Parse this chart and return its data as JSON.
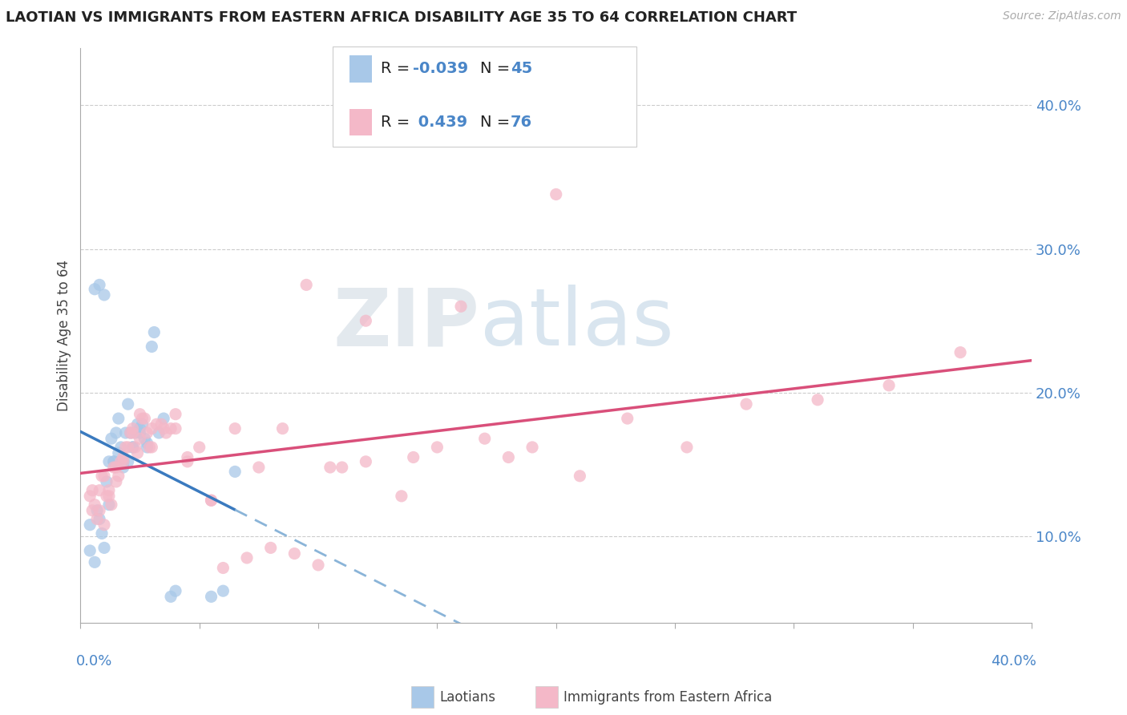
{
  "title": "LAOTIAN VS IMMIGRANTS FROM EASTERN AFRICA DISABILITY AGE 35 TO 64 CORRELATION CHART",
  "source_text": "Source: ZipAtlas.com",
  "ylabel": "Disability Age 35 to 64",
  "xlim": [
    0.0,
    0.4
  ],
  "ylim": [
    0.04,
    0.44
  ],
  "color_blue": "#a8c8e8",
  "color_pink": "#f4b8c8",
  "color_blue_line": "#3a7abf",
  "color_pink_line": "#d94f7a",
  "color_blue_line_dash": "#8ab4d8",
  "watermark_zip": "#c8d4e0",
  "watermark_atlas": "#a8c8e0",
  "legend_r1_val": "-0.039",
  "legend_n1": "45",
  "legend_r2_val": "0.439",
  "legend_n2": "76",
  "blue_scatter_x": [
    0.004,
    0.006,
    0.007,
    0.008,
    0.009,
    0.01,
    0.011,
    0.012,
    0.013,
    0.014,
    0.015,
    0.016,
    0.017,
    0.018,
    0.019,
    0.02,
    0.021,
    0.022,
    0.023,
    0.024,
    0.025,
    0.026,
    0.027,
    0.028,
    0.03,
    0.031,
    0.033,
    0.035,
    0.038,
    0.04,
    0.004,
    0.006,
    0.008,
    0.01,
    0.012,
    0.014,
    0.016,
    0.018,
    0.02,
    0.022,
    0.025,
    0.028,
    0.055,
    0.06,
    0.065
  ],
  "blue_scatter_y": [
    0.09,
    0.082,
    0.118,
    0.112,
    0.102,
    0.092,
    0.138,
    0.122,
    0.168,
    0.152,
    0.172,
    0.182,
    0.162,
    0.148,
    0.172,
    0.192,
    0.172,
    0.162,
    0.172,
    0.178,
    0.172,
    0.178,
    0.168,
    0.162,
    0.232,
    0.242,
    0.172,
    0.182,
    0.058,
    0.062,
    0.108,
    0.272,
    0.275,
    0.268,
    0.152,
    0.152,
    0.158,
    0.152,
    0.152,
    0.162,
    0.175,
    0.165,
    0.058,
    0.062,
    0.145
  ],
  "pink_scatter_x": [
    0.004,
    0.005,
    0.006,
    0.007,
    0.008,
    0.009,
    0.01,
    0.011,
    0.012,
    0.013,
    0.014,
    0.015,
    0.016,
    0.017,
    0.018,
    0.019,
    0.02,
    0.021,
    0.022,
    0.023,
    0.024,
    0.025,
    0.026,
    0.027,
    0.028,
    0.029,
    0.03,
    0.032,
    0.034,
    0.036,
    0.038,
    0.04,
    0.045,
    0.05,
    0.055,
    0.06,
    0.07,
    0.08,
    0.09,
    0.1,
    0.11,
    0.12,
    0.135,
    0.15,
    0.17,
    0.19,
    0.21,
    0.23,
    0.255,
    0.28,
    0.31,
    0.34,
    0.37,
    0.005,
    0.008,
    0.01,
    0.012,
    0.015,
    0.018,
    0.022,
    0.025,
    0.03,
    0.035,
    0.04,
    0.045,
    0.055,
    0.065,
    0.075,
    0.085,
    0.095,
    0.105,
    0.12,
    0.14,
    0.16,
    0.18,
    0.2
  ],
  "pink_scatter_y": [
    0.128,
    0.118,
    0.122,
    0.112,
    0.132,
    0.142,
    0.142,
    0.128,
    0.132,
    0.122,
    0.148,
    0.138,
    0.142,
    0.152,
    0.152,
    0.162,
    0.162,
    0.172,
    0.172,
    0.162,
    0.158,
    0.168,
    0.182,
    0.182,
    0.172,
    0.162,
    0.162,
    0.178,
    0.178,
    0.172,
    0.175,
    0.185,
    0.152,
    0.162,
    0.125,
    0.078,
    0.085,
    0.092,
    0.088,
    0.08,
    0.148,
    0.152,
    0.128,
    0.162,
    0.168,
    0.162,
    0.142,
    0.182,
    0.162,
    0.192,
    0.195,
    0.205,
    0.228,
    0.132,
    0.118,
    0.108,
    0.128,
    0.148,
    0.155,
    0.175,
    0.185,
    0.175,
    0.175,
    0.175,
    0.155,
    0.125,
    0.175,
    0.148,
    0.175,
    0.275,
    0.148,
    0.25,
    0.155,
    0.26,
    0.155,
    0.338
  ]
}
